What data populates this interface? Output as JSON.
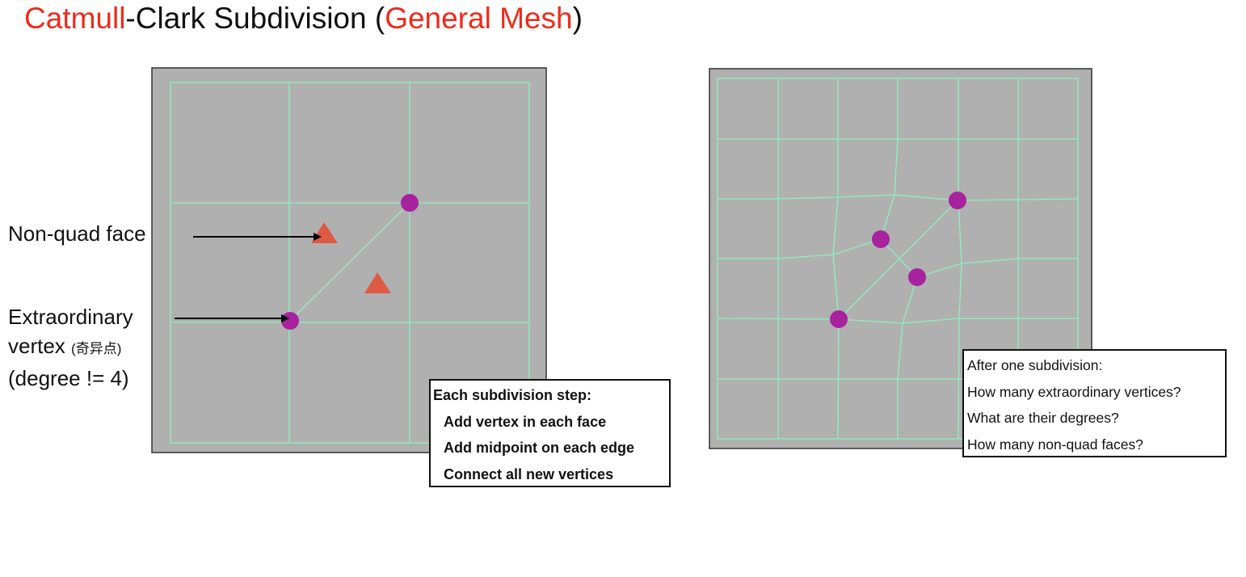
{
  "title": {
    "part1": "Catmull",
    "part2": "-Clark Subdivision (",
    "part3": "General Mesh",
    "part4": ")"
  },
  "labels": {
    "non_quad_face": "Non-quad face",
    "extraordinary_line1": "Extraordinary",
    "extraordinary_line2": "vertex",
    "extraordinary_cjk": "(奇异点)",
    "extraordinary_line3": "(degree != 4)"
  },
  "step_box": {
    "heading": "Each subdivision step:",
    "items": [
      "Add vertex in each face",
      "Add midpoint on each edge",
      "Connect all new vertices"
    ]
  },
  "question_box": {
    "heading": "After one subdivision:",
    "items": [
      "How many extraordinary vertices?",
      "What are their degrees?",
      "How many non-quad faces?"
    ]
  },
  "colors": {
    "title_accent": "#ee2a1a",
    "mesh_background": "#b0b0b0",
    "mesh_edges": "#8ef0c0",
    "extraordinary_vertex": "#a8229e",
    "non_quad_face_marker": "#de5a44"
  }
}
